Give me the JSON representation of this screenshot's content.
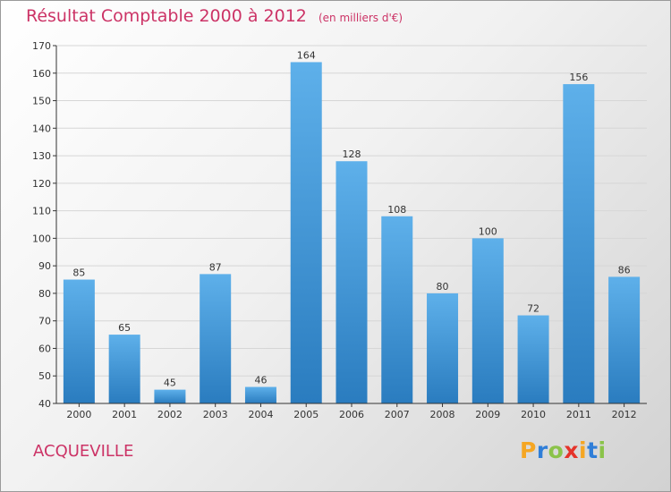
{
  "header": {
    "title": "Résultat Comptable 2000 à 2012",
    "unit": "(en milliers d'€)"
  },
  "location": "ACQUEVILLE",
  "brand": {
    "letters": [
      "P",
      "r",
      "o",
      "x",
      "i",
      "t",
      "i"
    ],
    "colors": [
      "#f5a623",
      "#2f7ed8",
      "#8bc34a",
      "#e5332a",
      "#f5a623",
      "#2f7ed8",
      "#8bc34a"
    ]
  },
  "colors": {
    "title": "#cc3366",
    "bar_top": "#5eb0ea",
    "bar_bottom": "#2a7cbf",
    "grid": "#d6d6d6",
    "axis": "#333333"
  },
  "chart_data": {
    "type": "bar",
    "title": "Résultat Comptable 2000 à 2012",
    "xlabel": "",
    "ylabel": "",
    "categories": [
      "2000",
      "2001",
      "2002",
      "2003",
      "2004",
      "2005",
      "2006",
      "2007",
      "2008",
      "2009",
      "2010",
      "2011",
      "2012"
    ],
    "values": [
      85,
      65,
      45,
      87,
      46,
      164,
      128,
      108,
      80,
      100,
      72,
      156,
      86
    ],
    "ylim": [
      40,
      170
    ],
    "yticks": [
      40,
      50,
      60,
      70,
      80,
      90,
      100,
      110,
      120,
      130,
      140,
      150,
      160,
      170
    ],
    "grid": true,
    "legend": "none"
  }
}
